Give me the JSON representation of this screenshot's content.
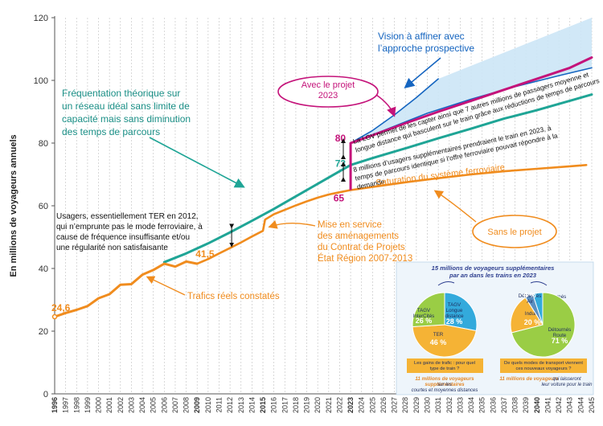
{
  "chart_data": {
    "type": "line",
    "ylabel": "En millions de voyageurs annuels",
    "ylim": [
      0,
      120
    ],
    "yticks": [
      0,
      20,
      40,
      60,
      80,
      100,
      120
    ],
    "xlim": [
      1996,
      2045
    ],
    "x_labels": [
      "1996",
      "1997",
      "1998",
      "1999",
      "2000",
      "2001",
      "2002",
      "2003",
      "2004",
      "2005",
      "2006",
      "2007",
      "2008",
      "2009",
      "2010",
      "2011",
      "2012",
      "2013",
      "2014",
      "2015",
      "2016",
      "2017",
      "2018",
      "2019",
      "2020",
      "2021",
      "2022",
      "2023",
      "2024",
      "2025",
      "2026",
      "2027",
      "2028",
      "2029",
      "2030",
      "2031",
      "2032",
      "2033",
      "2034",
      "2035",
      "2036",
      "2037",
      "2038",
      "2039",
      "2040",
      "2041",
      "2042",
      "2043",
      "2044",
      "2045"
    ],
    "bold_x_labels": [
      "1996",
      "2009",
      "2015",
      "2023",
      "2040"
    ],
    "grid": "vertical dashed",
    "series": [
      {
        "key": "actual",
        "color": "#f08c1e",
        "points": [
          [
            1996,
            24.6
          ],
          [
            1997,
            25.8
          ],
          [
            1998,
            26.8
          ],
          [
            1999,
            28
          ],
          [
            2000,
            30.5
          ],
          [
            2001,
            31.8
          ],
          [
            2002,
            34.8
          ],
          [
            2003,
            35
          ],
          [
            2004,
            38
          ],
          [
            2005,
            39.5
          ],
          [
            2006,
            41.5
          ],
          [
            2007,
            40.6
          ],
          [
            2008,
            42.2
          ],
          [
            2009,
            41.5
          ]
        ]
      },
      {
        "key": "sans_projet",
        "color": "#f08c1e",
        "points": [
          [
            2009,
            41.5
          ],
          [
            2010,
            43
          ],
          [
            2011,
            44.8
          ],
          [
            2012,
            46.5
          ],
          [
            2013,
            48.3
          ],
          [
            2014,
            50.2
          ],
          [
            2015,
            52
          ],
          [
            2015.2,
            55.6
          ],
          [
            2016,
            57.3
          ],
          [
            2017,
            58.7
          ],
          [
            2018,
            60.1
          ],
          [
            2019,
            61.4
          ],
          [
            2020,
            62.6
          ],
          [
            2021,
            63.6
          ],
          [
            2022,
            64.3
          ],
          [
            2023,
            65
          ],
          [
            2025,
            66
          ],
          [
            2028,
            67.5
          ],
          [
            2031,
            68.8
          ],
          [
            2034,
            70
          ],
          [
            2037,
            71
          ],
          [
            2040,
            71.8
          ],
          [
            2043,
            72.6
          ],
          [
            2044.5,
            73
          ]
        ]
      },
      {
        "key": "theorique",
        "color": "#1fa596",
        "points": [
          [
            2006,
            42
          ],
          [
            2008,
            44.8
          ],
          [
            2010,
            48
          ],
          [
            2012,
            51.5
          ],
          [
            2014,
            55.2
          ],
          [
            2016,
            59
          ],
          [
            2018,
            63
          ],
          [
            2020,
            67
          ],
          [
            2022,
            71
          ],
          [
            2023,
            73
          ],
          [
            2025,
            75.2
          ],
          [
            2028,
            78.3
          ],
          [
            2031,
            81.5
          ],
          [
            2034,
            84.6
          ],
          [
            2037,
            87.8
          ],
          [
            2040,
            90.5
          ],
          [
            2043,
            93.5
          ],
          [
            2045,
            95.5
          ]
        ]
      },
      {
        "key": "avec_projet",
        "color": "#c4137a",
        "points": [
          [
            2023,
            80
          ],
          [
            2025,
            82.5
          ],
          [
            2028,
            86.3
          ],
          [
            2031,
            90
          ],
          [
            2034,
            93.5
          ],
          [
            2037,
            97
          ],
          [
            2040,
            100.5
          ],
          [
            2043,
            104
          ],
          [
            2045,
            107.3
          ]
        ]
      },
      {
        "key": "prospective",
        "color": "#1565c0",
        "points": [
          [
            2023,
            80
          ],
          [
            2025,
            84
          ],
          [
            2027,
            89
          ],
          [
            2029,
            94.5
          ],
          [
            2031,
            100.5
          ]
        ]
      },
      {
        "key": "prospective_lower",
        "color": "#1565c0",
        "points": [
          [
            2023,
            80
          ],
          [
            2026,
            84
          ],
          [
            2030,
            89.5
          ],
          [
            2034,
            94
          ],
          [
            2038,
            98
          ],
          [
            2042,
            101.5
          ],
          [
            2045,
            104
          ]
        ]
      }
    ],
    "point_labels": [
      {
        "text": "24,6",
        "x": 1996,
        "y": 24.6,
        "color": "#f08c1e"
      },
      {
        "text": "41,5",
        "x": 2009,
        "y": 41.5,
        "color": "#f08c1e"
      },
      {
        "text": "80",
        "x": 2023,
        "y": 80,
        "color": "#c4137a"
      },
      {
        "text": "73",
        "x": 2023,
        "y": 73,
        "color": "#1fa596"
      },
      {
        "text": "65",
        "x": 2023,
        "y": 65,
        "color": "#c4137a"
      }
    ],
    "annotations": {
      "vision_title": "Vision à affiner avec\nl’approche prospective",
      "theorique": "Fréquentation théorique sur\nun réseau idéal sans limite de\ncapacité mais sans diminution\ndes temps de parcours",
      "avec_projet": "Avec le projet\n2023",
      "lgv_note": "La LGV permet de les capter ainsi que 7 autres millions de passagers moyenne et\nlongue distance qui basculent sur le train grâce aux réductions de temps de parcours",
      "usagers_note": "8 millions d’usagers supplémentaires prendraient le train en 2023, à\ntemps de parcours identique si l’offre ferroviaire pouvait répondre à la\ndemande",
      "saturation": "Saturation du système ferroviaire",
      "usagers_ter": "Usagers, essentiellement TER en 2012,\nqui n’emprunte pas le mode ferroviaire, à\ncause de fréquence insuffisante et/ou\nune régularité non satisfaisante",
      "mise_en_service": "Mise en service\ndes aménagements\ndu Contrat de Projets\nÉtat Région 2007-2013",
      "sans_projet": "Sans le projet",
      "trafics_reels": "Trafics réels constatés"
    },
    "inset": {
      "title": "15 millions de voyageurs supplémentaires\npar an dans les trains en 2023",
      "pie_left": {
        "slices": [
          {
            "label": "TAGV\nLongue\ndistance",
            "value": 28,
            "text": "28 %",
            "color": "#33aadc"
          },
          {
            "label": "TER",
            "value": 46,
            "text": "46 %",
            "color": "#f5b335"
          },
          {
            "label": "TAGV\nInterCités",
            "value": 26,
            "text": "26 %",
            "color": "#9acd45"
          }
        ],
        "question": "Les gains de trafic : pour quel\ntype de train ?",
        "caption_em": "11 millions de voyageurs\nsupplémentaires",
        "caption_rest": " sur les\ncourtes et moyennes distances"
      },
      "pie_right": {
        "slices": [
          {
            "label": "Détournés\nCar",
            "value": 5,
            "text": "5 %",
            "color": "#33aadc"
          },
          {
            "label": "Détournés\nRoute",
            "value": 71,
            "text": "71 %",
            "color": "#9acd45"
          },
          {
            "label": "Induits",
            "value": 20,
            "text": "20 %",
            "color": "#f5b335"
          },
          {
            "label": "Détournés\nAir",
            "value": 4,
            "text": "4 %",
            "color": "#5c8fc0"
          }
        ],
        "question": "De quels modes de transport viennent\nces nouveaux voyageurs ?",
        "caption_em": "11 millions de voyageurs",
        "caption_rest": " qui laisseront\nleur voiture pour le train"
      }
    }
  }
}
